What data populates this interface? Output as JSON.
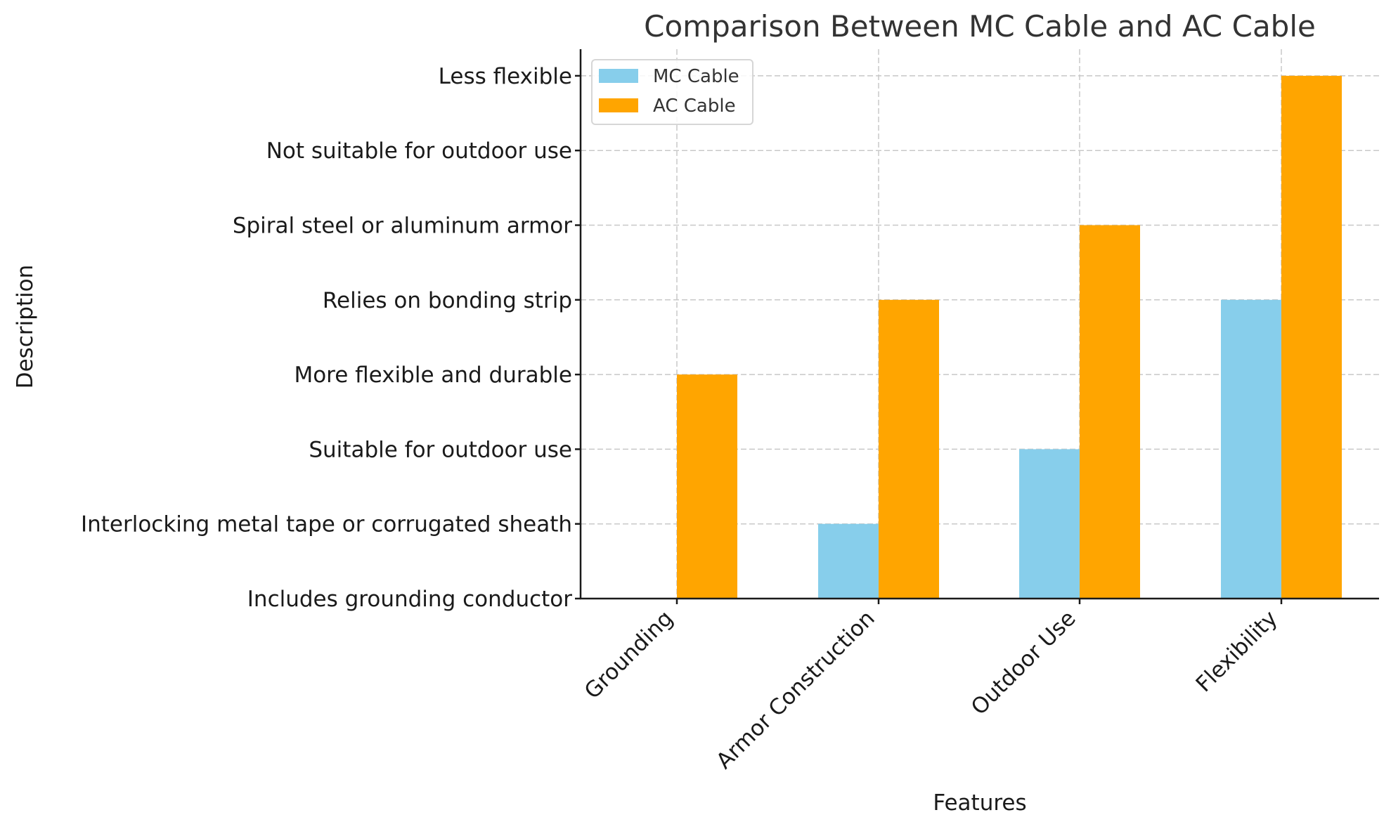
{
  "chart_data": {
    "type": "bar",
    "title": "Comparison Between MC Cable and AC Cable",
    "xlabel": "Features",
    "ylabel": "Description",
    "categories": [
      "Grounding",
      "Armor Construction",
      "Outdoor Use",
      "Flexibility"
    ],
    "y_tick_labels": [
      "Includes grounding conductor",
      "Interlocking metal tape or corrugated sheath",
      "Suitable for outdoor use",
      "More flexible and durable",
      "Relies on bonding strip",
      "Spiral steel or aluminum armor",
      "Not suitable for outdoor use",
      "Less flexible"
    ],
    "series": [
      {
        "name": "MC Cable",
        "color": "#87CEEB",
        "values": [
          0,
          1,
          2,
          4
        ]
      },
      {
        "name": "AC Cable",
        "color": "#FFA500",
        "values": [
          3,
          4,
          5,
          7
        ]
      }
    ],
    "ylim": [
      0,
      7.3
    ],
    "grid": true,
    "legend_position": "upper left",
    "x_tick_rotation": 45
  }
}
